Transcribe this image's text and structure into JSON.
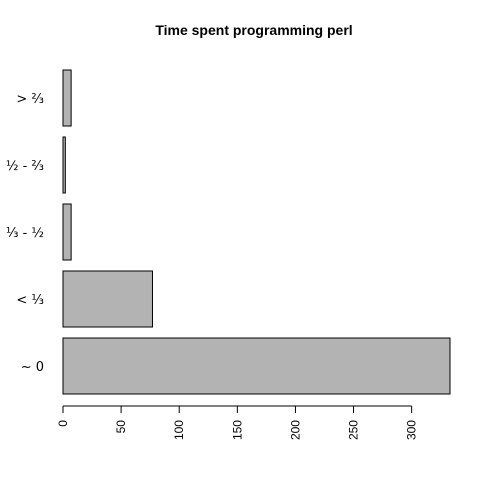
{
  "chart_data": {
    "type": "bar",
    "orientation": "horizontal",
    "title": "Time spent programming perl",
    "categories": [
      "~ 0",
      "< ⅓",
      "⅓ - ½",
      "½ - ⅔",
      "> ⅔"
    ],
    "values": [
      333,
      77,
      7,
      2,
      7
    ],
    "xlim": [
      0,
      333
    ],
    "xticks": [
      0,
      50,
      100,
      150,
      200,
      250,
      300
    ],
    "xlabel": "",
    "ylabel": "",
    "grid": false,
    "bar_color": "#b3b3b3"
  }
}
